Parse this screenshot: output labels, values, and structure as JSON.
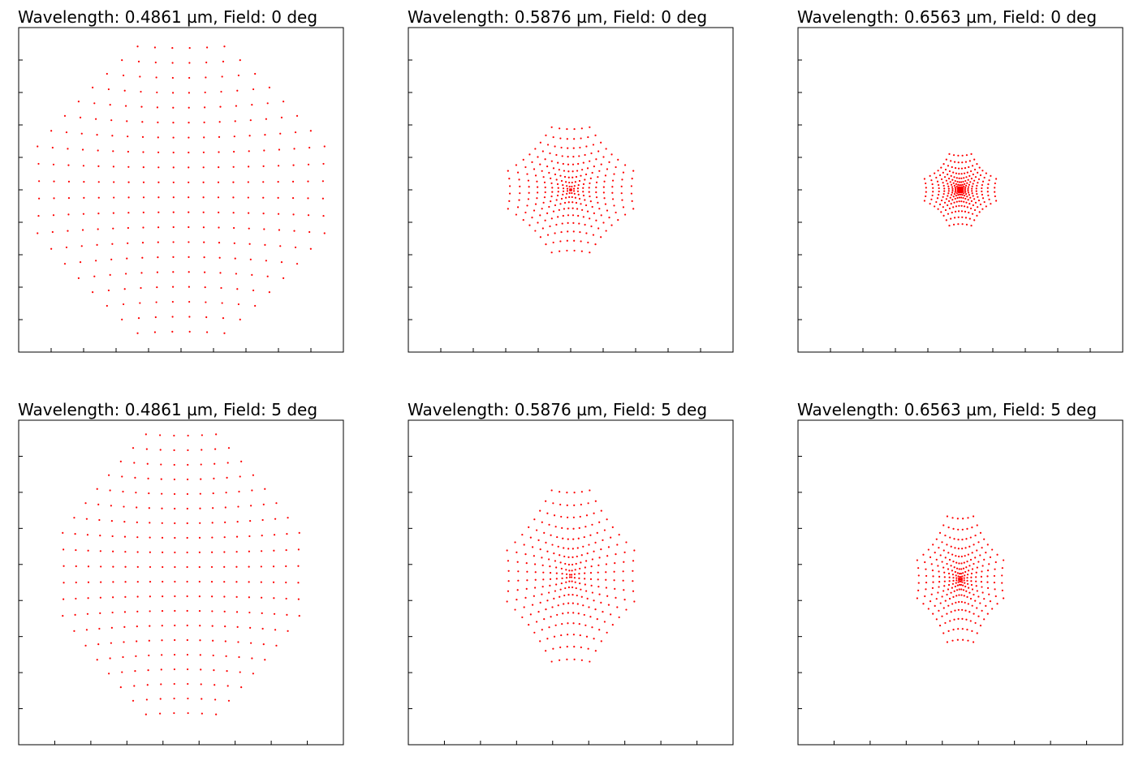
{
  "chart_data": [
    {
      "type": "scatter",
      "title": "Wavelength: 0.4861 µm, Field: 0 deg",
      "wavelength_um": 0.4861,
      "field_deg": 0,
      "pattern": "spot diagram, square pupil grid with pincushion distortion, corners clipped",
      "grid_lines": 20,
      "marker_color": "#ff0000",
      "x_ticks": 9,
      "y_ticks": 9,
      "x_tick_labels": [],
      "y_tick_labels": [],
      "grid": false,
      "xlim": [
        -1,
        1
      ],
      "ylim": [
        -1,
        1
      ],
      "spot_extent": {
        "x_half": 0.92,
        "y_half": 0.92,
        "y_center": 0.0
      },
      "radial_power": 1.0,
      "pincushion": 0.18,
      "corner_clip": 1.22
    },
    {
      "type": "scatter",
      "title": "Wavelength: 0.5876 µm, Field: 0 deg",
      "wavelength_um": 0.5876,
      "field_deg": 0,
      "pattern": "spot diagram, compact spot with dense center",
      "grid_lines": 20,
      "marker_color": "#ff0000",
      "x_ticks": 9,
      "y_ticks": 9,
      "x_tick_labels": [],
      "y_tick_labels": [],
      "grid": false,
      "xlim": [
        -1,
        1
      ],
      "ylim": [
        -1,
        1
      ],
      "spot_extent": {
        "x_half": 0.5,
        "y_half": 0.5,
        "y_center": 0.0
      },
      "radial_power": 1.6,
      "pincushion": 0.18,
      "corner_clip": 1.22
    },
    {
      "type": "scatter",
      "title": "Wavelength: 0.6563 µm, Field: 0 deg",
      "wavelength_um": 0.6563,
      "field_deg": 0,
      "pattern": "spot diagram, small spot with star-shaped center",
      "grid_lines": 20,
      "marker_color": "#ff0000",
      "x_ticks": 9,
      "y_ticks": 9,
      "x_tick_labels": [],
      "y_tick_labels": [],
      "grid": false,
      "xlim": [
        -1,
        1
      ],
      "ylim": [
        -1,
        1
      ],
      "spot_extent": {
        "x_half": 0.33,
        "y_half": 0.33,
        "y_center": 0.0
      },
      "radial_power": 2.0,
      "pincushion": 0.2,
      "corner_clip": 1.22
    },
    {
      "type": "scatter",
      "title": "Wavelength: 0.4861 µm, Field: 5 deg",
      "wavelength_um": 0.4861,
      "field_deg": 5,
      "pattern": "spot diagram, vertically elongated, off-axis",
      "grid_lines": 20,
      "marker_color": "#ff0000",
      "x_ticks": 8,
      "y_ticks": 8,
      "x_tick_labels": [],
      "y_tick_labels": [],
      "grid": false,
      "xlim": [
        -1,
        1
      ],
      "ylim": [
        -1,
        1
      ],
      "spot_extent": {
        "x_half": 0.76,
        "y_half": 0.9,
        "y_center": 0.05
      },
      "radial_power": 1.0,
      "pincushion": 0.15,
      "corner_clip": 1.22
    },
    {
      "type": "scatter",
      "title": "Wavelength: 0.5876 µm, Field: 5 deg",
      "wavelength_um": 0.5876,
      "field_deg": 5,
      "pattern": "spot diagram, vertically elongated, dense center",
      "grid_lines": 20,
      "marker_color": "#ff0000",
      "x_ticks": 8,
      "y_ticks": 8,
      "x_tick_labels": [],
      "y_tick_labels": [],
      "grid": false,
      "xlim": [
        -1,
        1
      ],
      "ylim": [
        -1,
        1
      ],
      "spot_extent": {
        "x_half": 0.49,
        "y_half": 0.66,
        "y_center": 0.04
      },
      "radial_power": 1.5,
      "pincushion": 0.16,
      "corner_clip": 1.22
    },
    {
      "type": "scatter",
      "title": "Wavelength: 0.6563 µm, Field: 5 deg",
      "wavelength_um": 0.6563,
      "field_deg": 5,
      "pattern": "spot diagram, vertically elongated, concentrated center",
      "grid_lines": 20,
      "marker_color": "#ff0000",
      "x_ticks": 8,
      "y_ticks": 8,
      "x_tick_labels": [],
      "y_tick_labels": [],
      "grid": false,
      "xlim": [
        -1,
        1
      ],
      "ylim": [
        -1,
        1
      ],
      "spot_extent": {
        "x_half": 0.37,
        "y_half": 0.54,
        "y_center": 0.02
      },
      "radial_power": 1.8,
      "pincushion": 0.18,
      "corner_clip": 1.22
    }
  ]
}
